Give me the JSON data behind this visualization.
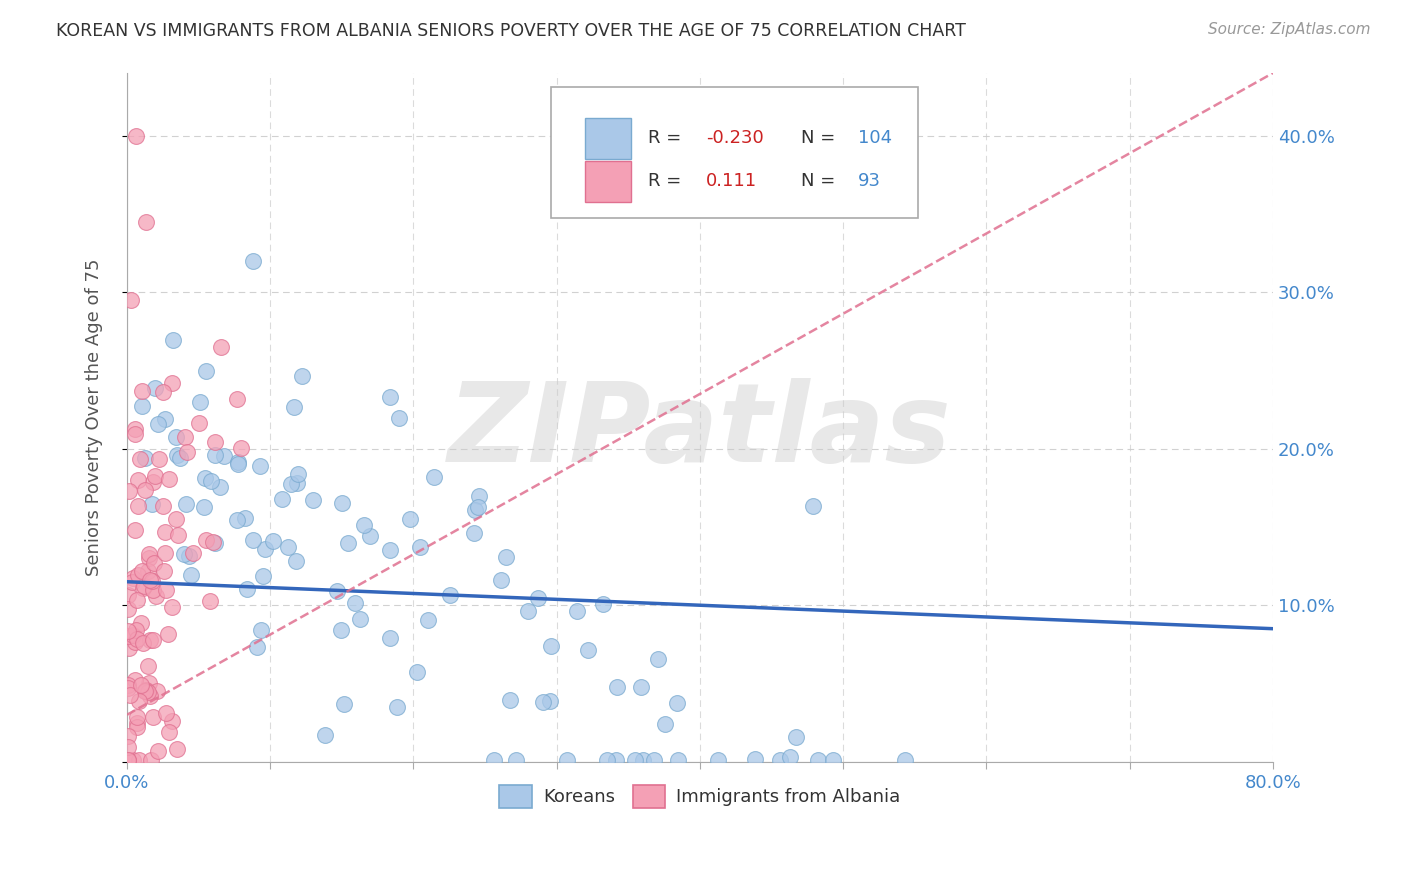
{
  "title": "KOREAN VS IMMIGRANTS FROM ALBANIA SENIORS POVERTY OVER THE AGE OF 75 CORRELATION CHART",
  "source": "Source: ZipAtlas.com",
  "ylabel": "Seniors Poverty Over the Age of 75",
  "xlabel": "",
  "xlim": [
    0.0,
    0.8
  ],
  "ylim": [
    -0.02,
    0.44
  ],
  "plot_ylim": [
    0.0,
    0.44
  ],
  "xticks": [
    0.0,
    0.1,
    0.2,
    0.3,
    0.4,
    0.5,
    0.6,
    0.7,
    0.8
  ],
  "xticklabels": [
    "0.0%",
    "",
    "",
    "",
    "",
    "",
    "",
    "",
    "80.0%"
  ],
  "yticks": [
    0.0,
    0.1,
    0.2,
    0.3,
    0.4
  ],
  "yticklabels": [
    "",
    "10.0%",
    "20.0%",
    "30.0%",
    "40.0%"
  ],
  "korean_color": "#aac8e8",
  "albanian_color": "#f4a0b5",
  "korean_edge": "#7aaad0",
  "albanian_edge": "#e07090",
  "korean_R": -0.23,
  "korean_N": 104,
  "albanian_R": 0.111,
  "albanian_N": 93,
  "trend_korean_color": "#3366bb",
  "trend_albanian_color": "#e07090",
  "watermark": "ZIPatlas",
  "legend_korean": "Koreans",
  "legend_albanian": "Immigrants from Albania",
  "background_color": "#ffffff",
  "grid_color": "#cccccc",
  "title_color": "#333333",
  "axis_label_color": "#555555",
  "tick_color": "#4488cc",
  "legend_box_color": "#aaaaaa",
  "legend_R_color": "#cc2222",
  "legend_N_color": "#4488cc",
  "legend_R_label_color": "#555555"
}
